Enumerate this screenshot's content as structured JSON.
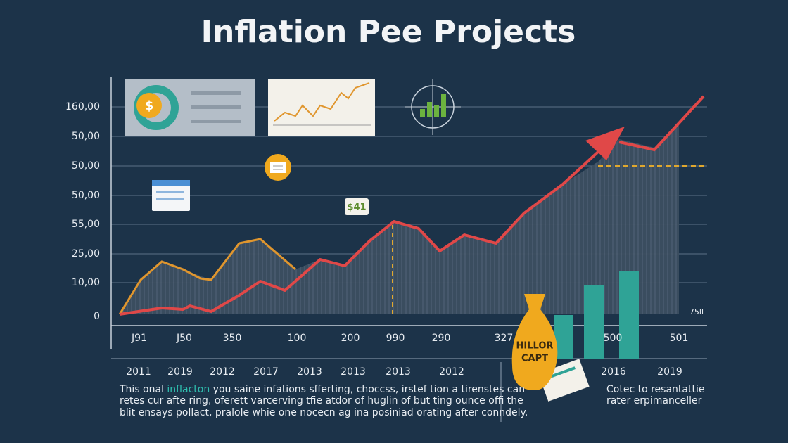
{
  "header": {
    "title": "Inflation Pee Projects"
  },
  "y_axis_labels": [
    "160,00",
    "50,00",
    "50,00",
    "50,00",
    "55,00",
    "25,00",
    "10,00",
    "0"
  ],
  "x_axis_labels_top": [
    "J91",
    "J50",
    "350",
    "100",
    "200",
    "990",
    "290",
    "327",
    "500",
    "501"
  ],
  "corner_label": "75ll",
  "x_axis_labels_bottom": [
    "2011",
    "2019",
    "2012",
    "2017",
    "2013",
    "2013",
    "2013",
    "2012",
    "2016",
    "2019"
  ],
  "badge": "$41",
  "bag_label": [
    "HILLOR",
    "CAPT"
  ],
  "description": {
    "lead": "This onal ",
    "highlight": "inflacton",
    "rest": " you saine infations sfferting, choccss, irstef tion a tirenstes can",
    "lines": [
      "retes cur afte ring, oferett varcerving tfie atdor of huglin of but ting ounce offi the",
      "blit ensays pollact, pralole whie one nocecn ag ina posiniad orating after conndely."
    ]
  },
  "side_note": [
    "Cotec to resantattie",
    "rater erpimanceller"
  ]
}
